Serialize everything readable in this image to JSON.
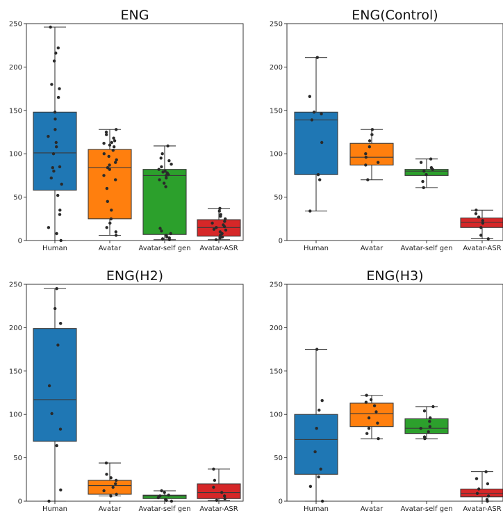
{
  "chart_data": [
    {
      "type": "box",
      "title": "ENG",
      "categories": [
        "Human",
        "Avatar",
        "Avatar-self gen",
        "Avatar-ASR"
      ],
      "ylim": [
        0,
        250
      ],
      "yticks": [
        0,
        50,
        100,
        150,
        200,
        250
      ],
      "colors": [
        "#1f77b4",
        "#ff7f0e",
        "#2ca02c",
        "#d62728"
      ],
      "boxes": [
        {
          "min": 0,
          "q1": 58,
          "median": 101,
          "q3": 148,
          "max": 246
        },
        {
          "min": 6,
          "q1": 25,
          "median": 84,
          "q3": 105,
          "max": 128
        },
        {
          "min": 1,
          "q1": 7,
          "median": 75,
          "q3": 82,
          "max": 109
        },
        {
          "min": 1,
          "q1": 5,
          "median": 15,
          "q3": 24,
          "max": 37
        }
      ],
      "points": [
        [
          246,
          222,
          216,
          207,
          180,
          175,
          165,
          148,
          140,
          128,
          120,
          113,
          108,
          100,
          85,
          84,
          80,
          72,
          65,
          52,
          35,
          30,
          15,
          8,
          0
        ],
        [
          128,
          125,
          122,
          118,
          115,
          113,
          112,
          110,
          108,
          104,
          100,
          97,
          93,
          90,
          87,
          84,
          82,
          75,
          70,
          60,
          45,
          35,
          25,
          20,
          15,
          10,
          6
        ],
        [
          109,
          100,
          95,
          92,
          88,
          85,
          82,
          80,
          79,
          78,
          76,
          75,
          72,
          70,
          66,
          62,
          14,
          11,
          8,
          6,
          4,
          3,
          2,
          1
        ],
        [
          37,
          34,
          30,
          28,
          25,
          22,
          20,
          18,
          16,
          15,
          13,
          12,
          10,
          8,
          6,
          4,
          3,
          1
        ]
      ]
    },
    {
      "type": "box",
      "title": "ENG(Control)",
      "categories": [
        "Human",
        "Avatar",
        "Avatar-self gen",
        "Avatar-ASR"
      ],
      "ylim": [
        0,
        250
      ],
      "yticks": [
        0,
        50,
        100,
        150,
        200,
        250
      ],
      "colors": [
        "#1f77b4",
        "#ff7f0e",
        "#2ca02c",
        "#d62728"
      ],
      "boxes": [
        {
          "min": 34,
          "q1": 76,
          "median": 139,
          "q3": 148,
          "max": 211
        },
        {
          "min": 70,
          "q1": 87,
          "median": 96,
          "q3": 112,
          "max": 128
        },
        {
          "min": 61,
          "q1": 75,
          "median": 80,
          "q3": 82,
          "max": 94
        },
        {
          "min": 2,
          "q1": 15,
          "median": 21,
          "q3": 26,
          "max": 35
        }
      ],
      "points": [
        [
          211,
          166,
          148,
          146,
          139,
          113,
          76,
          70,
          34
        ],
        [
          128,
          122,
          115,
          108,
          100,
          96,
          90,
          87,
          70
        ],
        [
          94,
          90,
          84,
          82,
          80,
          76,
          68,
          61
        ],
        [
          35,
          31,
          27,
          23,
          20,
          15,
          6,
          2
        ]
      ]
    },
    {
      "type": "box",
      "title": "ENG(H2)",
      "categories": [
        "Human",
        "Avatar",
        "Avatar-self gen",
        "Avatar-ASR"
      ],
      "ylim": [
        0,
        250
      ],
      "yticks": [
        0,
        50,
        100,
        150,
        200,
        250
      ],
      "colors": [
        "#1f77b4",
        "#ff7f0e",
        "#2ca02c",
        "#d62728"
      ],
      "boxes": [
        {
          "min": 0,
          "q1": 69,
          "median": 117,
          "q3": 199,
          "max": 245
        },
        {
          "min": 6,
          "q1": 8,
          "median": 18,
          "q3": 24,
          "max": 44
        },
        {
          "min": 0,
          "q1": 3,
          "median": 6,
          "q3": 7,
          "max": 12
        },
        {
          "min": 1,
          "q1": 3,
          "median": 10,
          "q3": 20,
          "max": 37
        }
      ],
      "points": [
        [
          245,
          222,
          205,
          180,
          133,
          101,
          83,
          64,
          13,
          0
        ],
        [
          44,
          31,
          27,
          24,
          20,
          16,
          12,
          8,
          6
        ],
        [
          12,
          10,
          7,
          6,
          4,
          2,
          1,
          0
        ],
        [
          37,
          24,
          16,
          10,
          6,
          3,
          1
        ]
      ]
    },
    {
      "type": "box",
      "title": "ENG(H3)",
      "categories": [
        "Human",
        "Avatar",
        "Avatar-self gen",
        "Avatar-ASR"
      ],
      "ylim": [
        0,
        250
      ],
      "yticks": [
        0,
        50,
        100,
        150,
        200,
        250
      ],
      "colors": [
        "#1f77b4",
        "#ff7f0e",
        "#2ca02c",
        "#d62728"
      ],
      "boxes": [
        {
          "min": 0,
          "q1": 31,
          "median": 71,
          "q3": 100,
          "max": 175
        },
        {
          "min": 72,
          "q1": 86,
          "median": 101,
          "q3": 113,
          "max": 122
        },
        {
          "min": 72,
          "q1": 78,
          "median": 84,
          "q3": 95,
          "max": 109
        },
        {
          "min": 0,
          "q1": 5,
          "median": 9,
          "q3": 14,
          "max": 34
        }
      ],
      "points": [
        [
          175,
          116,
          105,
          84,
          57,
          37,
          28,
          17,
          0
        ],
        [
          122,
          117,
          114,
          110,
          103,
          96,
          90,
          84,
          78,
          72
        ],
        [
          109,
          104,
          96,
          92,
          86,
          84,
          80,
          74,
          72
        ],
        [
          34,
          26,
          20,
          14,
          9,
          6,
          2,
          0
        ]
      ]
    }
  ]
}
